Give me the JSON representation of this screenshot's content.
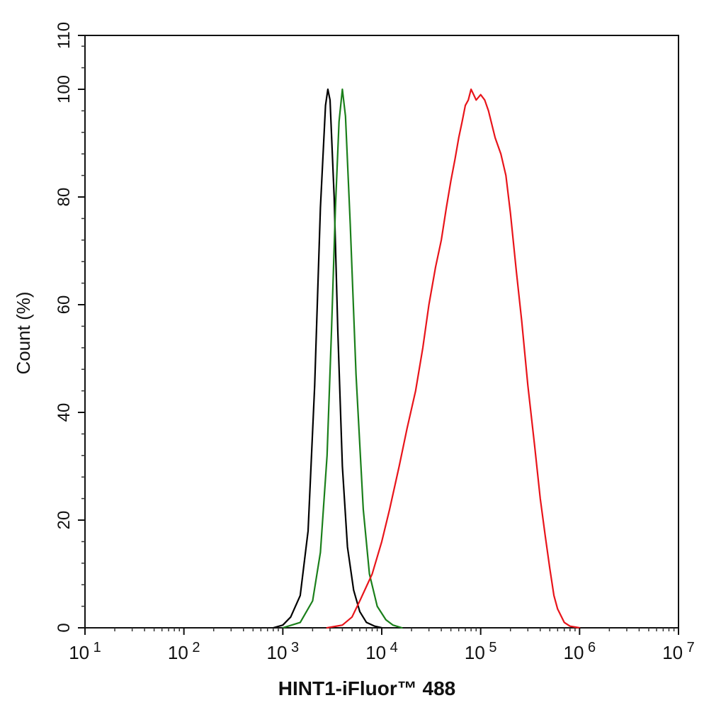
{
  "chart_data": {
    "type": "line",
    "title": "",
    "xlabel": "HINT1-iFluor™ 488",
    "ylabel": "Count  (%)",
    "xscale": "log",
    "xlim": [
      10,
      10000000
    ],
    "ylim": [
      0,
      110
    ],
    "grid": false,
    "x_ticks": [
      {
        "value": 10,
        "base": "10",
        "exp": "1"
      },
      {
        "value": 100,
        "base": "10",
        "exp": "2"
      },
      {
        "value": 1000,
        "base": "10",
        "exp": "3"
      },
      {
        "value": 10000,
        "base": "10",
        "exp": "4"
      },
      {
        "value": 100000,
        "base": "10",
        "exp": "5"
      },
      {
        "value": 1000000,
        "base": "10",
        "exp": "6"
      },
      {
        "value": 10000000,
        "base": "10",
        "exp": "7"
      }
    ],
    "y_ticks": [
      0,
      20,
      40,
      60,
      80,
      100,
      110
    ],
    "series": [
      {
        "color": "#000000",
        "x": [
          800,
          1000,
          1200,
          1500,
          1800,
          2100,
          2400,
          2700,
          2850,
          3000,
          3300,
          3600,
          4000,
          4500,
          5200,
          6000,
          7000,
          8500,
          10000
        ],
        "y": [
          0,
          0.5,
          2,
          6,
          18,
          45,
          78,
          97,
          100,
          98,
          80,
          55,
          30,
          15,
          7,
          3,
          1,
          0.3,
          0
        ]
      },
      {
        "color": "#1a7f1a",
        "x": [
          1000,
          1500,
          2000,
          2400,
          2800,
          3100,
          3400,
          3700,
          4000,
          4300,
          4800,
          5500,
          6500,
          7500,
          9000,
          11000,
          13000,
          16000
        ],
        "y": [
          0,
          1,
          5,
          14,
          32,
          55,
          78,
          94,
          100,
          95,
          75,
          47,
          22,
          10,
          4,
          1.5,
          0.5,
          0
        ]
      },
      {
        "color": "#e8141a",
        "x": [
          2800,
          4000,
          5000,
          6000,
          8000,
          10000,
          12000,
          15000,
          18000,
          22000,
          26000,
          30000,
          35000,
          40000,
          45000,
          50000,
          55000,
          60000,
          65000,
          70000,
          75000,
          80000,
          85000,
          90000,
          100000,
          110000,
          120000,
          140000,
          160000,
          180000,
          200000,
          230000,
          260000,
          300000,
          350000,
          400000,
          450000,
          500000,
          550000,
          600000,
          700000,
          800000,
          1000000
        ],
        "y": [
          0,
          0.5,
          2,
          5,
          10,
          16,
          22,
          30,
          37,
          44,
          52,
          60,
          67,
          72,
          78,
          83,
          87,
          91,
          94,
          97,
          98,
          100,
          99,
          98,
          99,
          98,
          96,
          91,
          88,
          84,
          77,
          66,
          57,
          45,
          34,
          24,
          17,
          11,
          6,
          3.5,
          1,
          0.3,
          0
        ]
      }
    ]
  }
}
